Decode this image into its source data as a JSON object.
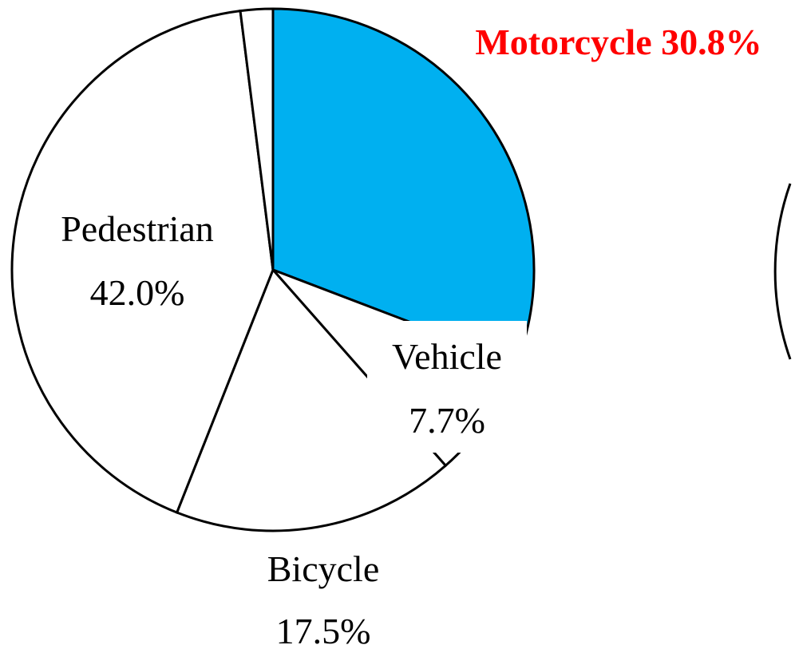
{
  "chart_data": {
    "type": "pie",
    "categories": [
      "Motorcycle",
      "Vehicle",
      "Bicycle",
      "Pedestrian",
      null
    ],
    "values": [
      30.8,
      7.7,
      17.5,
      42.0,
      2.0
    ],
    "value_labels": [
      "30.8%",
      "7.7%",
      "17.5%",
      "42.0%",
      null
    ],
    "colors": [
      "#00b0f0",
      "#ffffff",
      "#ffffff",
      "#ffffff",
      "#ffffff"
    ],
    "label_colors": [
      "#ff0000",
      "#000000",
      "#000000",
      "#000000",
      "#000000"
    ]
  }
}
